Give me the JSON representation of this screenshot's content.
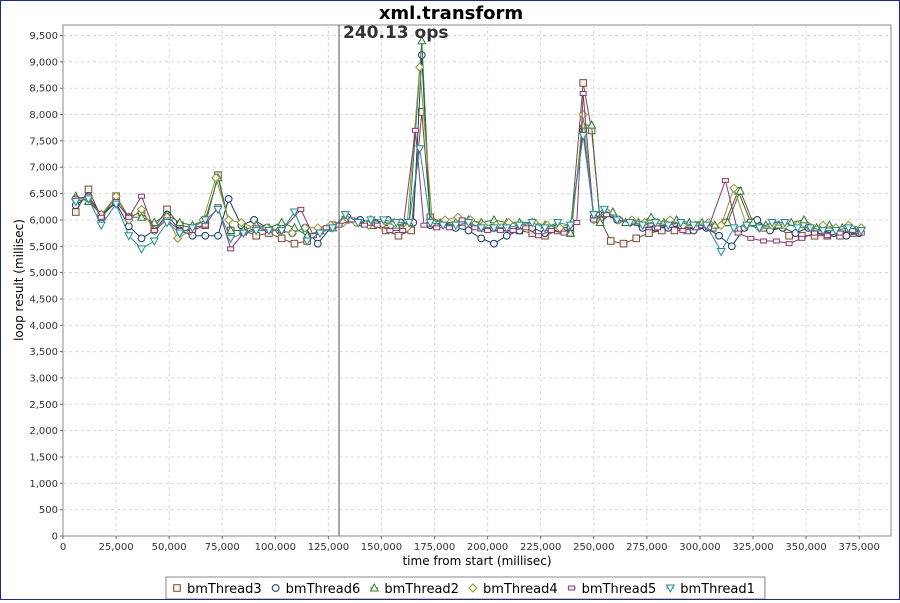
{
  "chart_data": {
    "type": "line",
    "title": "xml.transform",
    "annotation": "240.13 ops",
    "marker_x": 130000,
    "xlabel": "time from start (millisec)",
    "ylabel": "loop result (millisec)",
    "xlim": [
      0,
      390000
    ],
    "ylim": [
      0,
      9700
    ],
    "x_ticks": [
      0,
      25000,
      50000,
      75000,
      100000,
      125000,
      150000,
      175000,
      200000,
      225000,
      250000,
      275000,
      300000,
      325000,
      350000,
      375000
    ],
    "y_ticks": [
      0,
      500,
      1000,
      1500,
      2000,
      2500,
      3000,
      3500,
      4000,
      4500,
      5000,
      5500,
      6000,
      6500,
      7000,
      7500,
      8000,
      8500,
      9000,
      9500
    ],
    "grid": true,
    "legend_position": "bottom",
    "series": [
      {
        "name": "bmThread3",
        "color": "#7a4a3a",
        "marker": "square",
        "x": [
          6000,
          12000,
          18000,
          25000,
          31000,
          37000,
          43000,
          49000,
          55000,
          61000,
          67000,
          73000,
          79000,
          85000,
          91000,
          97000,
          103000,
          109000,
          115000,
          121000,
          127000,
          133000,
          140000,
          146000,
          152000,
          158000,
          164000,
          169000,
          173000,
          179000,
          185000,
          191000,
          197000,
          203000,
          209000,
          215000,
          221000,
          227000,
          233000,
          239000,
          245000,
          249000,
          253000,
          258000,
          264000,
          270000,
          276000,
          282000,
          288000,
          294000,
          300000,
          306000,
          312000,
          318000,
          324000,
          330000,
          336000,
          342000,
          348000,
          354000,
          360000,
          366000,
          372000
        ],
        "y": [
          6150,
          6580,
          6050,
          6450,
          6050,
          6150,
          5850,
          6200,
          5900,
          5850,
          5900,
          6850,
          5800,
          5800,
          5700,
          5750,
          5650,
          5550,
          5600,
          5800,
          5900,
          6000,
          5950,
          5900,
          5800,
          5700,
          5800,
          8050,
          6050,
          5950,
          5900,
          5900,
          5850,
          5850,
          5850,
          5800,
          5750,
          5700,
          5800,
          5750,
          8600,
          7700,
          6000,
          5600,
          5550,
          5650,
          5750,
          5800,
          5800,
          5800,
          5900,
          5850,
          5950,
          6550,
          5950,
          5850,
          5900,
          5700,
          5700,
          5700,
          5700,
          5700,
          5750
        ]
      },
      {
        "name": "bmThread6",
        "color": "#1a3a6a",
        "marker": "circle",
        "x": [
          6000,
          12000,
          18000,
          25000,
          31000,
          37000,
          43000,
          49000,
          55000,
          61000,
          67000,
          73000,
          78000,
          84000,
          90000,
          96000,
          102000,
          108000,
          114000,
          120000,
          126000,
          134000,
          140000,
          147000,
          153000,
          159000,
          165000,
          169000,
          173000,
          179000,
          185000,
          191000,
          197000,
          203000,
          209000,
          215000,
          221000,
          227000,
          233000,
          239000,
          245000,
          250000,
          255000,
          261000,
          267000,
          273000,
          279000,
          285000,
          291000,
          297000,
          303000,
          309000,
          315000,
          321000,
          327000,
          333000,
          339000,
          345000,
          351000,
          357000,
          363000,
          369000,
          375000
        ],
        "y": [
          6280,
          6450,
          6100,
          6320,
          5880,
          5650,
          5800,
          6100,
          5800,
          5700,
          5700,
          5700,
          6400,
          5900,
          6000,
          5850,
          5800,
          5750,
          5850,
          5550,
          5850,
          6050,
          6000,
          5950,
          6000,
          5950,
          5950,
          9130,
          5900,
          5950,
          5850,
          5800,
          5650,
          5550,
          5700,
          5800,
          5850,
          5750,
          5850,
          5850,
          7700,
          6050,
          6100,
          6000,
          5950,
          5850,
          5850,
          5850,
          5900,
          5800,
          5850,
          5700,
          5500,
          5850,
          6000,
          5800,
          5850,
          5750,
          5850,
          5800,
          5750,
          5700,
          5750
        ]
      },
      {
        "name": "bmThread2",
        "color": "#2f7a3a",
        "marker": "triangle-up",
        "x": [
          6000,
          12000,
          18000,
          25000,
          31000,
          37000,
          43000,
          49000,
          55000,
          61000,
          67000,
          73000,
          79000,
          85000,
          91000,
          97000,
          103000,
          109000,
          115000,
          121000,
          127000,
          133000,
          139000,
          145000,
          151000,
          157000,
          163000,
          169000,
          173000,
          179000,
          185000,
          191000,
          197000,
          203000,
          209000,
          215000,
          221000,
          227000,
          233000,
          239000,
          245000,
          249000,
          253000,
          259000,
          265000,
          271000,
          277000,
          283000,
          289000,
          295000,
          301000,
          307000,
          313000,
          319000,
          325000,
          331000,
          337000,
          343000,
          349000,
          355000,
          361000,
          367000,
          373000
        ],
        "y": [
          6450,
          6350,
          6100,
          6350,
          6050,
          6050,
          5950,
          6100,
          5950,
          5900,
          6000,
          6800,
          5800,
          5800,
          5900,
          5850,
          5950,
          5850,
          5700,
          5800,
          5850,
          6000,
          5950,
          6000,
          5950,
          5900,
          5950,
          9400,
          6000,
          5950,
          5950,
          6000,
          5950,
          6000,
          5950,
          5950,
          5950,
          5900,
          5900,
          5750,
          7800,
          7800,
          5950,
          6150,
          5950,
          5950,
          6050,
          5950,
          6000,
          5950,
          5950,
          5900,
          5950,
          6550,
          5950,
          5900,
          5900,
          5950,
          6000,
          5850,
          5900,
          5850,
          5800
        ]
      },
      {
        "name": "bmThread4",
        "color": "#8a9a3a",
        "marker": "diamond",
        "x": [
          6000,
          12000,
          18000,
          25000,
          31000,
          37000,
          43000,
          49000,
          54000,
          60000,
          66000,
          72000,
          78000,
          84000,
          90000,
          96000,
          102000,
          108000,
          114000,
          120000,
          126000,
          132000,
          138000,
          144000,
          150000,
          156000,
          162000,
          168000,
          174000,
          180000,
          186000,
          192000,
          198000,
          204000,
          210000,
          216000,
          222000,
          228000,
          234000,
          240000,
          245000,
          250000,
          256000,
          262000,
          268000,
          274000,
          280000,
          286000,
          292000,
          298000,
          304000,
          310000,
          316000,
          322000,
          328000,
          334000,
          340000,
          346000,
          352000,
          358000,
          364000,
          370000,
          376000
        ],
        "y": [
          6400,
          6400,
          6100,
          6450,
          6000,
          6200,
          5800,
          6050,
          5650,
          5800,
          6000,
          6800,
          6000,
          5950,
          5850,
          5850,
          5800,
          5750,
          5850,
          5850,
          5900,
          5950,
          5950,
          5900,
          5900,
          5950,
          5850,
          8900,
          5950,
          6000,
          6050,
          6000,
          5900,
          5900,
          5950,
          5900,
          5950,
          5900,
          5850,
          5950,
          8000,
          6000,
          6150,
          6000,
          6000,
          5950,
          5950,
          6000,
          5900,
          5900,
          5950,
          5900,
          6600,
          5900,
          5850,
          5900,
          5900,
          5900,
          5850,
          5900,
          5850,
          5900,
          5850
        ]
      },
      {
        "name": "bmThread5",
        "color": "#8a3a7a",
        "marker": "square-small",
        "x": [
          6000,
          12000,
          18000,
          25000,
          31000,
          37000,
          43000,
          49000,
          55000,
          61000,
          67000,
          73000,
          79000,
          85000,
          91000,
          97000,
          103000,
          112000,
          118000,
          124000,
          130000,
          136000,
          142000,
          148000,
          154000,
          160000,
          166000,
          170000,
          176000,
          182000,
          188000,
          194000,
          200000,
          206000,
          212000,
          218000,
          224000,
          230000,
          236000,
          242000,
          245000,
          250000,
          256000,
          262000,
          268000,
          274000,
          280000,
          286000,
          292000,
          298000,
          304000,
          312000,
          318000,
          324000,
          330000,
          336000,
          342000,
          348000,
          354000,
          360000,
          366000,
          372000,
          376000
        ],
        "y": [
          6400,
          6450,
          6050,
          6350,
          6050,
          6450,
          5800,
          6000,
          5800,
          5800,
          5900,
          6250,
          5450,
          5750,
          5850,
          5800,
          5800,
          6200,
          5700,
          5850,
          5900,
          6000,
          5900,
          5900,
          5800,
          5800,
          7700,
          5900,
          5850,
          5850,
          6000,
          5850,
          5800,
          5800,
          5800,
          5850,
          5700,
          5800,
          5750,
          5950,
          8400,
          6000,
          6100,
          6000,
          5950,
          5900,
          5850,
          5900,
          5800,
          5850,
          5850,
          6750,
          5750,
          5650,
          5600,
          5600,
          5550,
          5650,
          5750,
          5700,
          5750,
          5800,
          5750
        ]
      },
      {
        "name": "bmThread1",
        "color": "#2a8a9a",
        "marker": "triangle-down",
        "x": [
          6000,
          12000,
          18000,
          25000,
          31000,
          37000,
          43000,
          49000,
          55000,
          61000,
          67000,
          73000,
          79000,
          85000,
          91000,
          97000,
          103000,
          109000,
          115000,
          121000,
          127000,
          133000,
          139000,
          145000,
          151000,
          157000,
          163000,
          168000,
          173000,
          179000,
          185000,
          191000,
          197000,
          203000,
          209000,
          215000,
          221000,
          227000,
          233000,
          239000,
          245000,
          250000,
          255000,
          261000,
          267000,
          273000,
          279000,
          285000,
          291000,
          297000,
          303000,
          310000,
          316000,
          322000,
          328000,
          334000,
          340000,
          346000,
          352000,
          358000,
          364000,
          370000,
          376000
        ],
        "y": [
          6350,
          6400,
          5900,
          6300,
          5700,
          5450,
          5600,
          5950,
          5750,
          5850,
          6000,
          6200,
          5650,
          5750,
          5800,
          5800,
          5800,
          6150,
          5600,
          5750,
          5850,
          6100,
          5950,
          6000,
          6000,
          5950,
          5950,
          7350,
          5950,
          5900,
          5900,
          5950,
          5850,
          5850,
          5850,
          5900,
          5950,
          5850,
          5950,
          5900,
          7600,
          6100,
          6200,
          6000,
          5950,
          5900,
          5950,
          5900,
          5950,
          5900,
          5900,
          5400,
          5850,
          5900,
          5850,
          5950,
          5950,
          5850,
          5850,
          5800,
          5800,
          5850,
          5800
        ]
      }
    ]
  }
}
